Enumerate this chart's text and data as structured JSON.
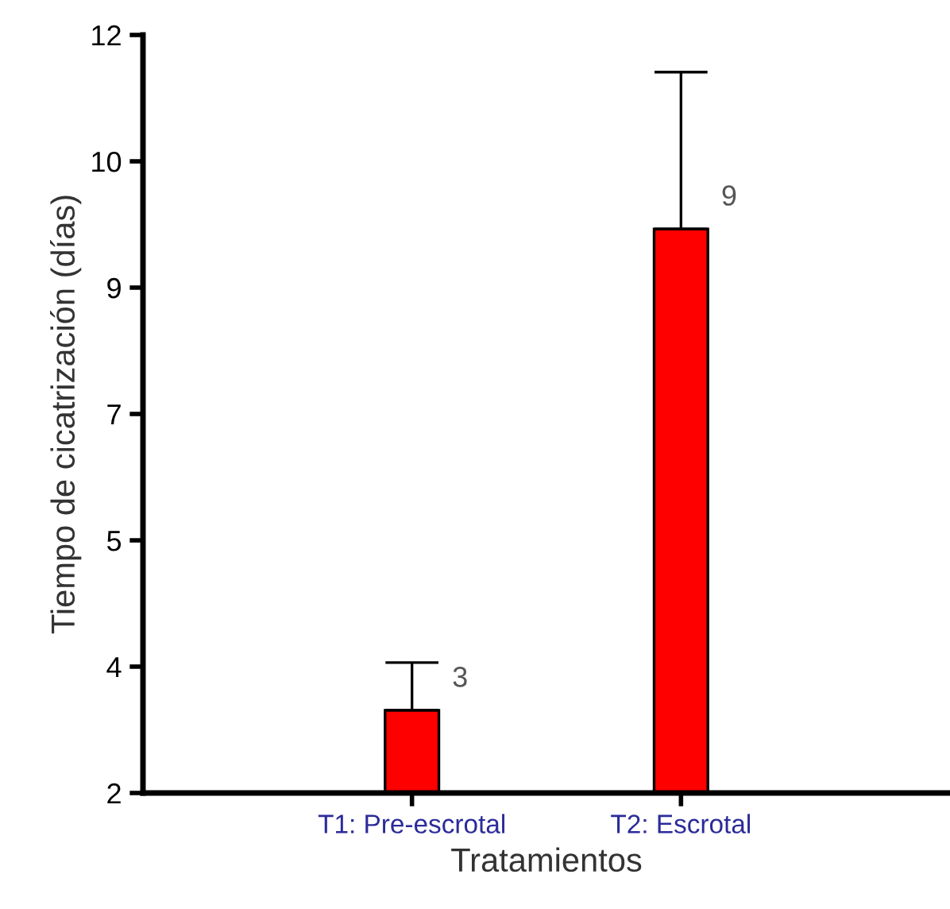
{
  "chart_data": {
    "type": "bar",
    "xlabel": "Tratamientos",
    "ylabel": "Tiempo de cicatrización (días)",
    "categories": [
      "T1: Pre-escrotal",
      "T2: Escrotal"
    ],
    "values": [
      3.09,
      9.44
    ],
    "errors": [
      [
        3.09,
        3.72
      ],
      [
        9.44,
        11.51
      ]
    ],
    "value_labels": [
      "3",
      "9"
    ],
    "color": "#ff0000",
    "ylim": [
      2,
      12
    ],
    "yticks": [
      2,
      {
        "value": 3.667,
        "label": "4"
      },
      {
        "value": 5.333,
        "label": "5"
      },
      7,
      {
        "value": 8.667,
        "label": "9"
      },
      {
        "value": 10.333,
        "label": "10"
      },
      12
    ],
    "grid": false,
    "legend": false
  }
}
